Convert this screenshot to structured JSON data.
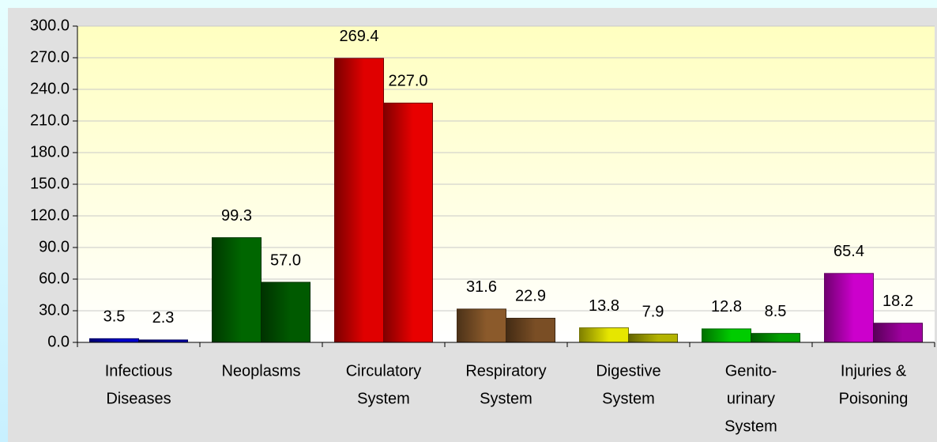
{
  "chart_data": {
    "type": "bar",
    "categories": [
      [
        "Infectious",
        "Diseases"
      ],
      [
        "Neoplasms"
      ],
      [
        "Circulatory",
        "System"
      ],
      [
        "Respiratory",
        "System"
      ],
      [
        "Digestive",
        "System"
      ],
      [
        "Genito-",
        "urinary",
        "System"
      ],
      [
        "Injuries &",
        "Poisoning"
      ]
    ],
    "series": [
      {
        "values": [
          3.5,
          99.3,
          269.4,
          31.6,
          13.8,
          12.8,
          65.4
        ],
        "value_labels": [
          "3.5",
          "99.3",
          "269.4",
          "31.6",
          "13.8",
          "12.8",
          "65.4"
        ],
        "colors": [
          "#0000cc",
          "#006600",
          "#e00000",
          "#8b5a2b",
          "#e6e600",
          "#00cc00",
          "#cc00cc"
        ]
      },
      {
        "values": [
          2.3,
          57.0,
          227.0,
          22.9,
          7.9,
          8.5,
          18.2
        ],
        "value_labels": [
          "2.3",
          "57.0",
          "227.0",
          "22.9",
          "7.9",
          "8.5",
          "18.2"
        ],
        "colors": [
          "#0000aa",
          "#005a00",
          "#e80000",
          "#7a4e25",
          "#b3b300",
          "#00a000",
          "#a000a0"
        ]
      }
    ],
    "ylim": [
      0,
      300
    ],
    "yticks": [
      {
        "value": 0,
        "label": "0.0"
      },
      {
        "value": 30,
        "label": "30.0"
      },
      {
        "value": 60,
        "label": "60.0"
      },
      {
        "value": 90,
        "label": "90.0"
      },
      {
        "value": 120,
        "label": "120.0"
      },
      {
        "value": 150,
        "label": "150.0"
      },
      {
        "value": 180,
        "label": "180.0"
      },
      {
        "value": 210,
        "label": "210.0"
      },
      {
        "value": 240,
        "label": "240.0"
      },
      {
        "value": 270,
        "label": "270.0"
      },
      {
        "value": 300,
        "label": "300.0"
      }
    ],
    "grid": true
  }
}
